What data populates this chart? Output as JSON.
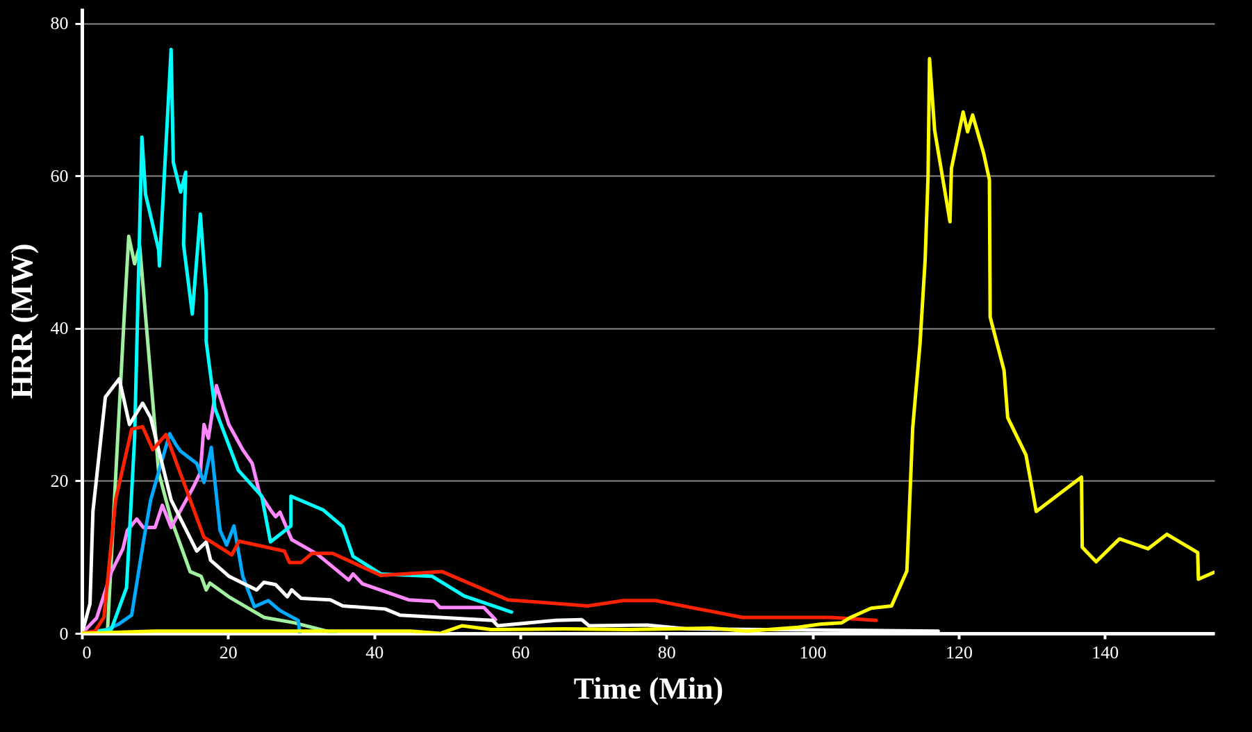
{
  "chart_data": {
    "type": "line",
    "xlabel": "Time (Min)",
    "ylabel": "HRR (MW)",
    "xlim": [
      0,
      155
    ],
    "ylim": [
      0,
      82
    ],
    "xticks": [
      0,
      20,
      40,
      60,
      80,
      100,
      120,
      140
    ],
    "yticks": [
      0,
      20,
      40,
      60,
      80
    ],
    "grid": "y",
    "line_style": "solid",
    "series": [
      {
        "color": "#a0f0a0",
        "x": [
          0,
          3.5,
          5.8,
          6.4,
          7.2,
          7.9,
          10.5,
          12.2,
          14.8,
          16.3,
          17,
          17.5,
          20.1,
          24.9,
          29,
          34.7
        ],
        "values": [
          0,
          0.5,
          42,
          52.1,
          48.5,
          50.8,
          21.1,
          15,
          8.1,
          7.5,
          5.7,
          6.6,
          4.8,
          2.1,
          1.4,
          0
        ]
      },
      {
        "color": "#ff88ff",
        "x": [
          0,
          2,
          4,
          5.6,
          6.2,
          7.5,
          8.4,
          10,
          11,
          12.2,
          15.3,
          16.2,
          16.7,
          17.3,
          18.4,
          20.1,
          22,
          23.3,
          24.3,
          25.8,
          26.5,
          27.1,
          28.7,
          32.2,
          36.5,
          37.1,
          38.4,
          44.7,
          48.2,
          49,
          55,
          56.6
        ],
        "values": [
          0,
          2,
          8,
          11.1,
          13.5,
          15,
          13.9,
          13.9,
          16.8,
          13.9,
          19.3,
          21.1,
          27.4,
          25.6,
          32.5,
          27.4,
          24.1,
          22.3,
          18.4,
          16.2,
          15.3,
          15.9,
          12.3,
          10.4,
          7,
          7.8,
          6.5,
          4.4,
          4.2,
          3.4,
          3.4,
          1.8
        ]
      },
      {
        "color": "#00aaff",
        "x": [
          0,
          3,
          5,
          6.8,
          8.4,
          9.4,
          12,
          12.9,
          13.5,
          15.7,
          16.7,
          17.7,
          18.9,
          19.8,
          20.8,
          22,
          23.6,
          25.5,
          27.1,
          29.6,
          29.8
        ],
        "values": [
          0,
          0.3,
          1.2,
          2.4,
          12,
          17.5,
          26.2,
          24.7,
          23.9,
          22.3,
          19.8,
          24.4,
          13.5,
          11.6,
          14.1,
          7.5,
          3.5,
          4.3,
          3,
          1.7,
          0
        ]
      },
      {
        "color": "#00ffff",
        "x": [
          0,
          4,
          6.1,
          7.2,
          8.2,
          8.7,
          10.5,
          10.6,
          12.2,
          12.5,
          13.5,
          14.2,
          13.9,
          15.1,
          16.2,
          17,
          17,
          18.2,
          21.4,
          24.6,
          25.8,
          28.6,
          28.6,
          33,
          35.7,
          37.1,
          40.9,
          47.9,
          52.3,
          58.8
        ],
        "values": [
          0,
          0.5,
          6,
          25.6,
          65.1,
          57.6,
          50.3,
          48.2,
          76.6,
          61.8,
          57.9,
          60.5,
          51,
          41.9,
          55,
          44.6,
          38.3,
          29.5,
          21.4,
          18,
          12,
          14.1,
          18,
          16.2,
          14,
          10.1,
          7.8,
          7.5,
          4.9,
          2.8
        ]
      },
      {
        "color": "#ffffff",
        "x": [
          0,
          1.1,
          1.5,
          3.2,
          5.1,
          6.5,
          8.3,
          9.4,
          12.2,
          15.7,
          17,
          17.6,
          20.1,
          23.9,
          24.9,
          26.5,
          28.1,
          28.7,
          30,
          34,
          35.7,
          41.5,
          43.5,
          56.2,
          56.9,
          64.8,
          68.4,
          69.4,
          77.3,
          82.8,
          117.2
        ],
        "values": [
          0,
          3.9,
          16,
          31,
          33.4,
          27.4,
          30.2,
          28.3,
          17.5,
          10.8,
          12,
          9.6,
          7.5,
          5.7,
          6.7,
          6.4,
          4.8,
          5.7,
          4.6,
          4.4,
          3.6,
          3.2,
          2.4,
          1.7,
          1,
          1.7,
          1.8,
          1,
          1.1,
          0.6,
          0.3
        ]
      },
      {
        "color": "#ff2200",
        "x": [
          0,
          1.8,
          3,
          4.6,
          6.8,
          8.3,
          9.7,
          11.5,
          16.7,
          20.5,
          21.5,
          27.7,
          28.4,
          30,
          31.5,
          34.3,
          40.9,
          49.3,
          58.3,
          69.2,
          74.1,
          78.5,
          90.4,
          102.5,
          108.7
        ],
        "values": [
          0,
          0.3,
          2.1,
          17.5,
          26.8,
          27.1,
          24.1,
          26.1,
          12.6,
          10.3,
          12.1,
          10.8,
          9.3,
          9.3,
          10.5,
          10.5,
          7.6,
          8.1,
          4.4,
          3.6,
          4.3,
          4.3,
          2.1,
          2.1,
          1.7
        ]
      },
      {
        "color": "#ffff00",
        "x": [
          0,
          10,
          30,
          45,
          49,
          52,
          56,
          66,
          75,
          86,
          91,
          98,
          101,
          104,
          105,
          108,
          110.8,
          112.9,
          113.7,
          114.7,
          115.4,
          115.8,
          116,
          116.7,
          118.8,
          119,
          120.6,
          121.2,
          121.9,
          123.4,
          124.2,
          124.3,
          126.2,
          126.7,
          129.2,
          130.6,
          136.8,
          136.9,
          138.8,
          142,
          145.9,
          148.5,
          152.7,
          152.8,
          154.9
        ],
        "values": [
          0,
          0.3,
          0.3,
          0.3,
          0,
          1,
          0.5,
          0.6,
          0.5,
          0.7,
          0.3,
          0.8,
          1.2,
          1.4,
          2,
          3.3,
          3.6,
          8.2,
          27,
          38,
          49,
          60,
          75.4,
          66,
          54,
          61,
          68.4,
          65.8,
          68,
          63,
          59.5,
          41.5,
          34.5,
          28.3,
          23.4,
          16,
          20.5,
          11.3,
          9.4,
          12.4,
          11.1,
          13,
          10.6,
          7.1,
          8
        ]
      }
    ]
  }
}
